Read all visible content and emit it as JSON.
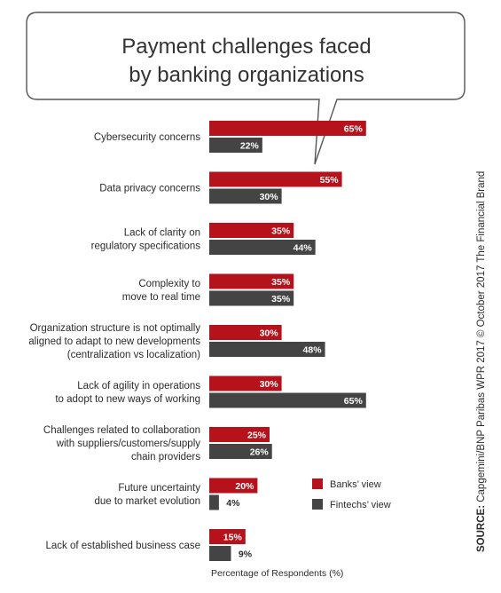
{
  "chart_data": {
    "type": "bar",
    "orientation": "horizontal",
    "title": "Payment challenges faced by banking organizations",
    "title_lines": [
      "Payment challenges faced",
      "by banking organizations"
    ],
    "xlabel": "Percentage of Respondents (%)",
    "xlim": [
      0,
      100
    ],
    "value_suffix": "%",
    "categories": [
      "Cybersecurity concerns",
      "Data privacy concerns",
      "Lack of clarity on regulatory specifications",
      "Complexity to move to real time",
      "Organization structure is not optimally aligned to adapt to new developments (centralization vs localization)",
      "Lack of agility in operations to adopt to new ways of working",
      "Challenges related to collaboration with suppliers/customers/supply chain providers",
      "Future uncertainty due to market evolution",
      "Lack of established business case"
    ],
    "category_lines": [
      [
        "Cybersecurity concerns"
      ],
      [
        "Data privacy concerns"
      ],
      [
        "Lack of clarity on",
        "regulatory specifications"
      ],
      [
        "Complexity to",
        "move to real time"
      ],
      [
        "Organization structure is not optimally",
        "aligned to adapt to new developments",
        "(centralization vs localization)"
      ],
      [
        "Lack of agility in operations",
        "to adopt to new ways of working"
      ],
      [
        "Challenges related to collaboration",
        "with suppliers/customers/supply",
        "chain providers"
      ],
      [
        "Future uncertainty",
        "due to market evolution"
      ],
      [
        "Lack of established business case"
      ]
    ],
    "series": [
      {
        "name": "Banks’ view",
        "color": "#b5121b",
        "values": [
          65,
          55,
          35,
          35,
          30,
          30,
          25,
          20,
          15
        ]
      },
      {
        "name": "Fintechs’ view",
        "color": "#444444",
        "values": [
          22,
          30,
          44,
          35,
          48,
          65,
          26,
          4,
          9
        ]
      }
    ],
    "legend_position": "lower-right",
    "grid": false,
    "source_prefix": "SOURCE:",
    "source_text": " Capgemini/BNP Paribas WPR 2017 © October 2017 The Financial Brand"
  }
}
